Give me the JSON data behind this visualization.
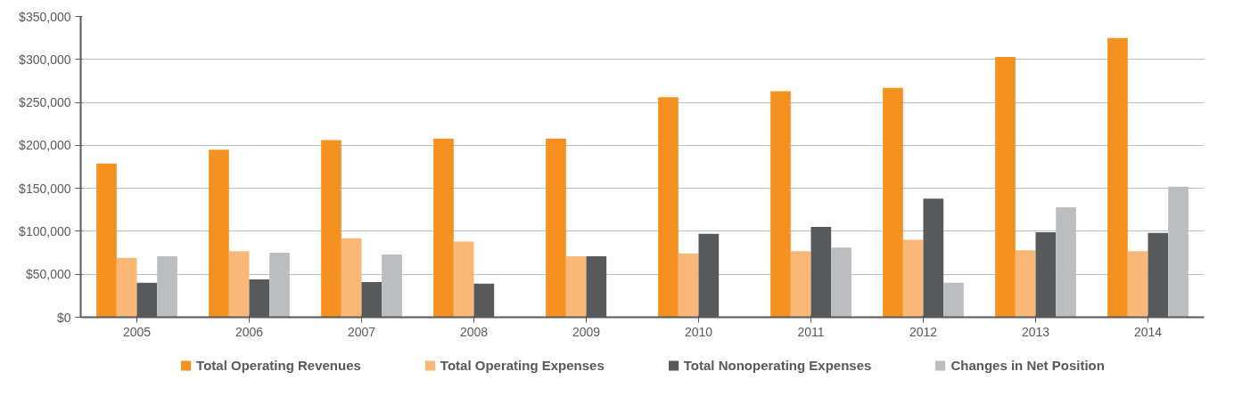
{
  "chart_data": {
    "type": "bar",
    "categories": [
      "2005",
      "2006",
      "2007",
      "2008",
      "2009",
      "2010",
      "2011",
      "2012",
      "2013",
      "2014"
    ],
    "series": [
      {
        "name": "Total Operating Revenues",
        "color": "#f59121",
        "values": [
          179000,
          195000,
          206000,
          208000,
          208000,
          256000,
          263000,
          267000,
          303000,
          325000
        ]
      },
      {
        "name": "Total Operating Expenses",
        "color": "#f9b877",
        "values": [
          69000,
          77000,
          92000,
          88000,
          71000,
          74000,
          77000,
          90000,
          78000,
          77000
        ]
      },
      {
        "name": "Total Nonoperating Expenses",
        "color": "#58595b",
        "values": [
          40000,
          44000,
          41000,
          39000,
          71000,
          97000,
          105000,
          138000,
          99000,
          98000
        ]
      },
      {
        "name": "Changes in Net Position",
        "color": "#bcbdc0",
        "values": [
          71000,
          75000,
          73000,
          null,
          null,
          null,
          81000,
          40000,
          128000,
          152000
        ]
      }
    ],
    "ylim": [
      0,
      350000
    ],
    "yticks": [
      {
        "value": 0,
        "label": "$0"
      },
      {
        "value": 50000,
        "label": "$50,000"
      },
      {
        "value": 100000,
        "label": "$100,000"
      },
      {
        "value": 150000,
        "label": "$150,000"
      },
      {
        "value": 200000,
        "label": "$200,000"
      },
      {
        "value": 250000,
        "label": "$250,000"
      },
      {
        "value": 300000,
        "label": "$300,000"
      },
      {
        "value": 350000,
        "label": "$350,000"
      }
    ],
    "grid": "y",
    "legend": "bottom"
  }
}
